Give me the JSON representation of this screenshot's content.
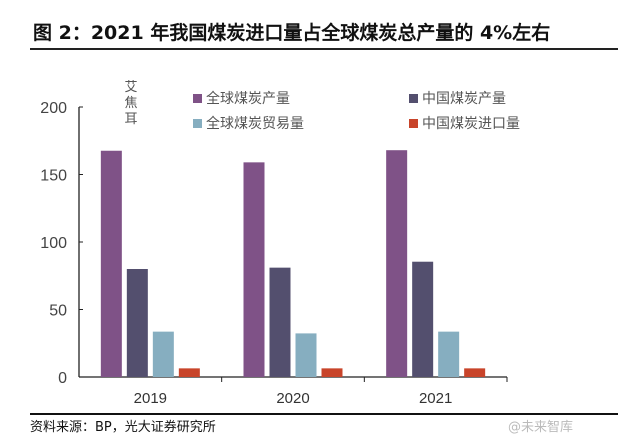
{
  "title": "图 2：2021 年我国煤炭进口量占全球煤炭总产量的 4%左右",
  "source": "资料来源：BP，光大证券研究所",
  "watermark": "@未来智库",
  "chart_data": {
    "type": "bar",
    "title": "",
    "ylabel": "艾焦耳",
    "xlabel": "",
    "categories": [
      "2019",
      "2020",
      "2021"
    ],
    "ylim": [
      0,
      200
    ],
    "yticks": [
      "0",
      "50",
      "100",
      "150",
      "200"
    ],
    "grid": false,
    "legend_position": "top",
    "series": [
      {
        "name": "全球煤炭产量",
        "color": "#7f5287",
        "values": [
          167.6,
          159,
          168
        ]
      },
      {
        "name": "中国煤炭产量",
        "color": "#534f6e",
        "values": [
          80,
          81,
          85.4
        ]
      },
      {
        "name": "全球煤炭贸易量",
        "color": "#86aec0",
        "values": [
          33.6,
          32.3,
          33.6
        ]
      },
      {
        "name": "中国煤炭进口量",
        "color": "#c8442a",
        "values": [
          6.4,
          6.4,
          6.4
        ]
      }
    ]
  }
}
